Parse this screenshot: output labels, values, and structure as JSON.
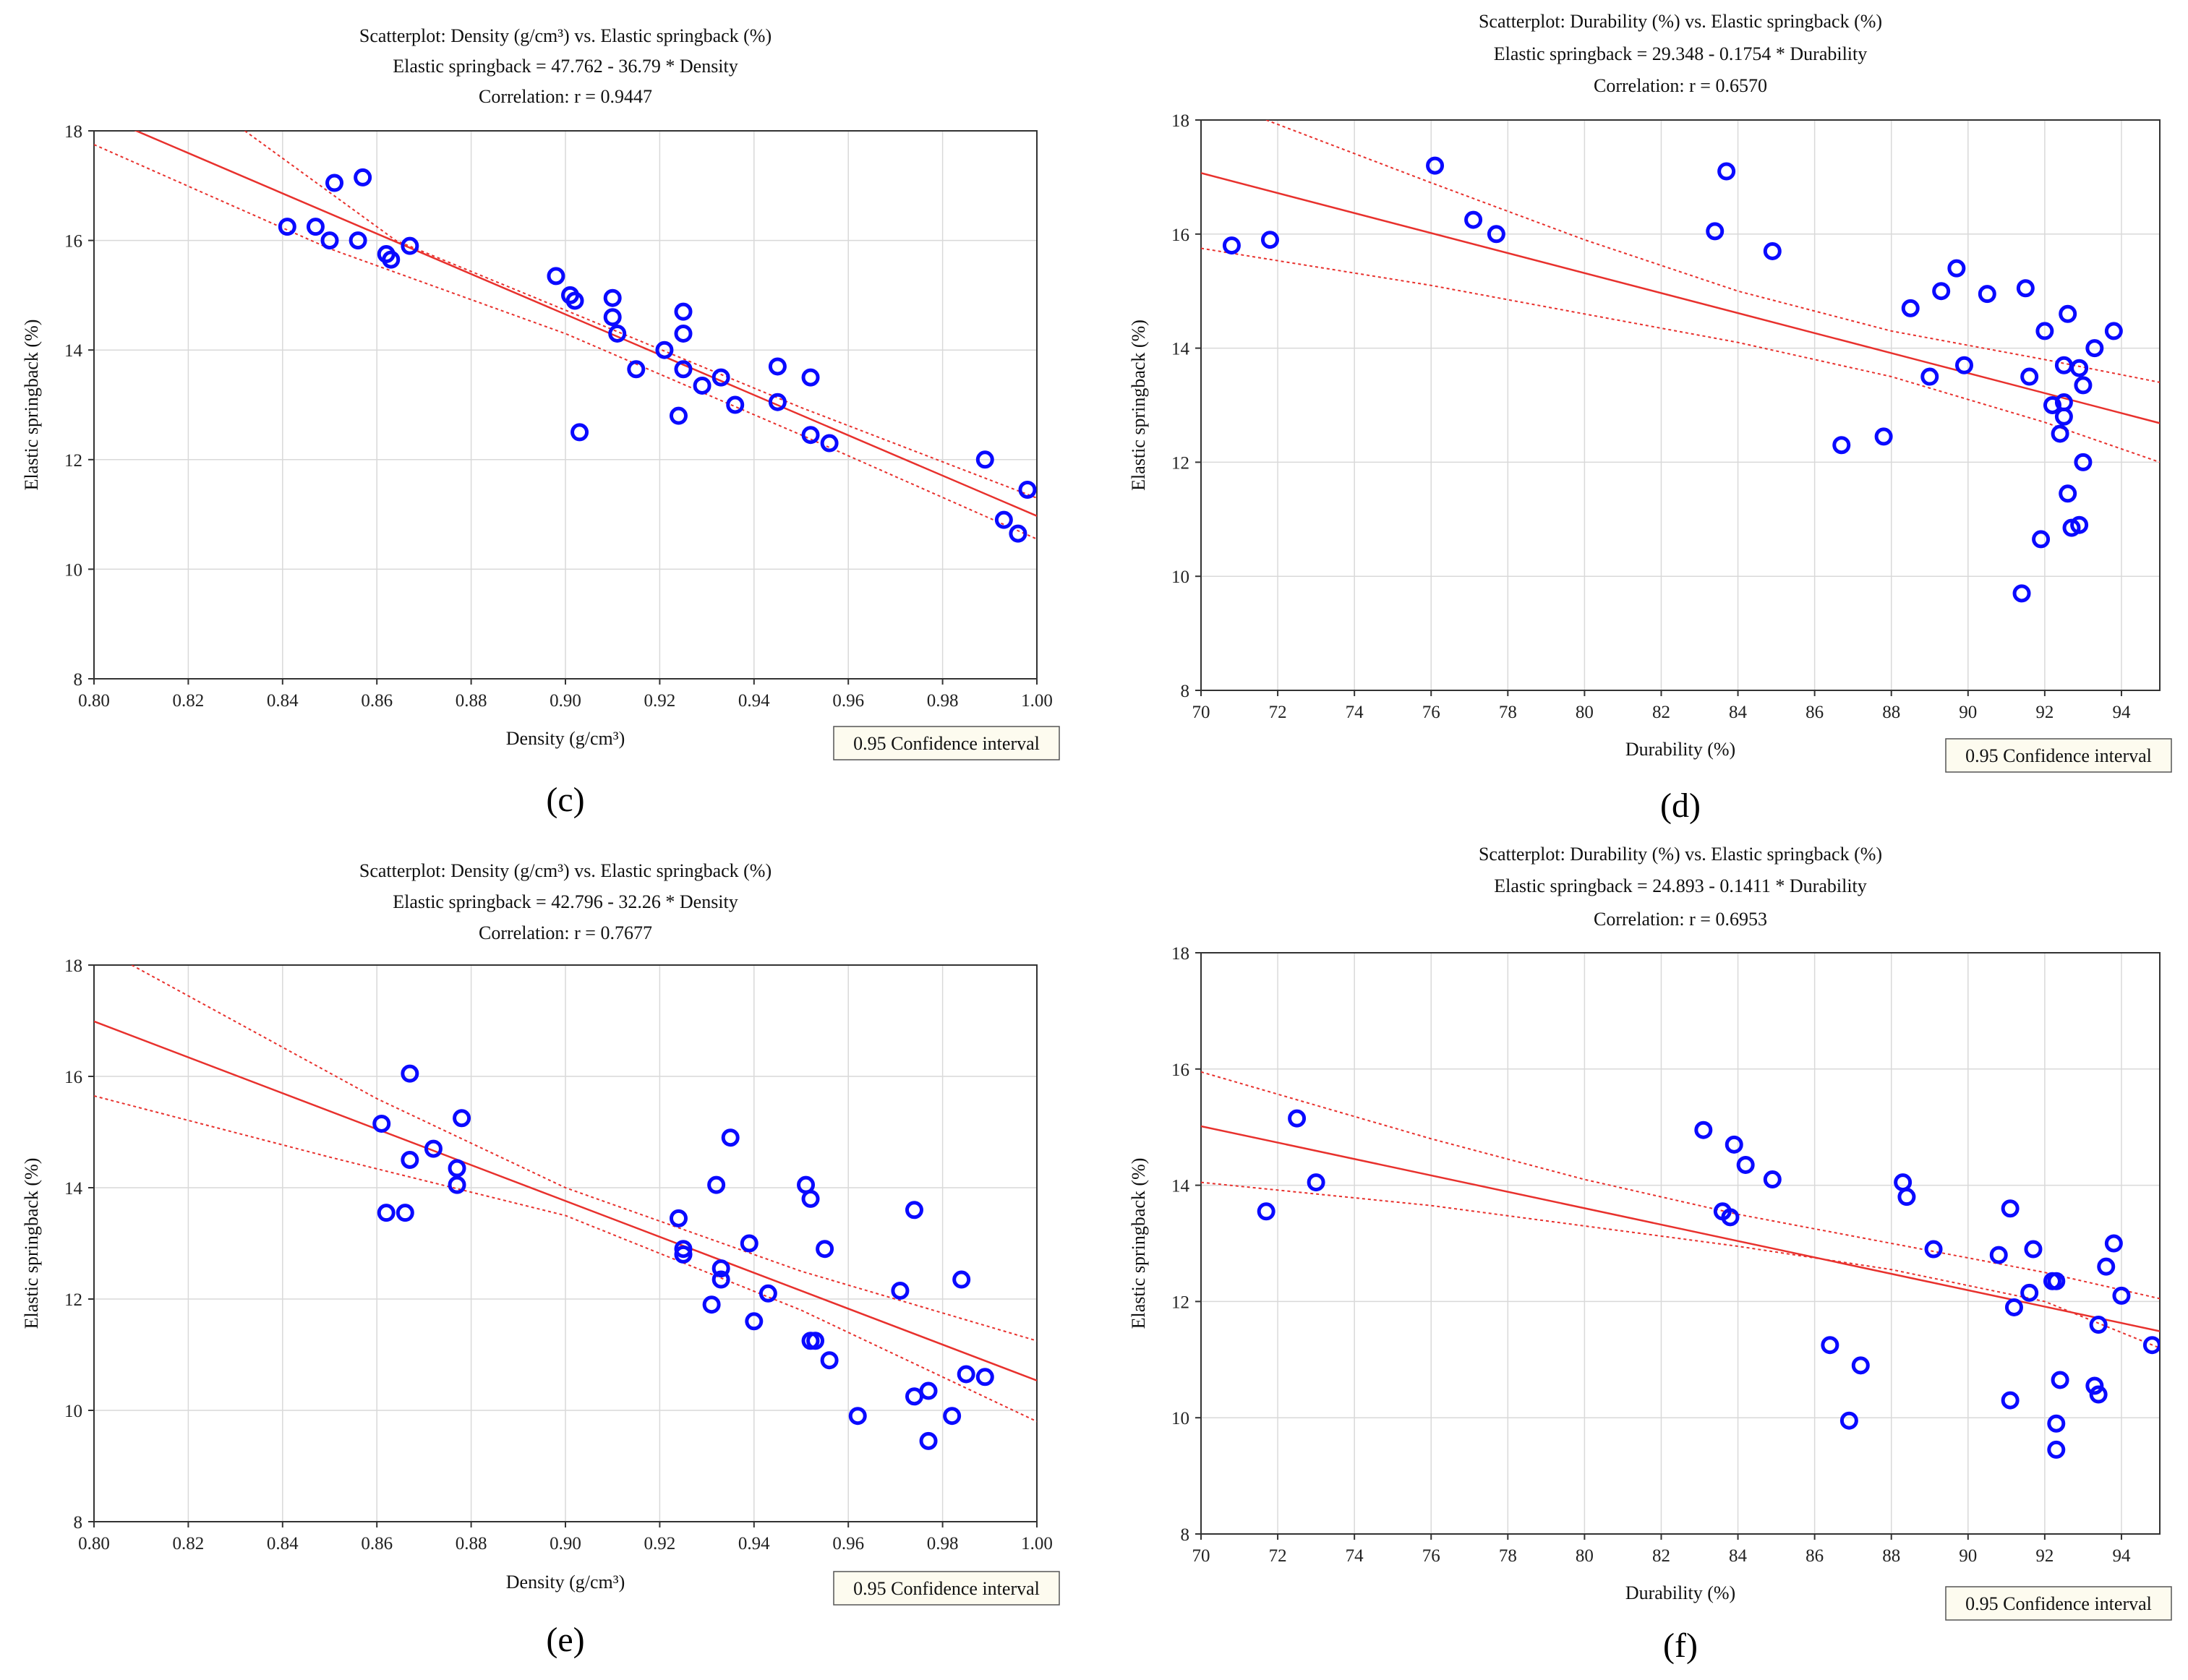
{
  "chart_data": [
    {
      "id": "c",
      "type": "scatter",
      "panel_label": "(c)",
      "title_lines": [
        "Scatterplot: Density (g/cm³)   vs. Elastic springback (%)",
        "Elastic springback  = 47.762 - 36.79  * Density",
        "Correlation: r =  0.9447"
      ],
      "xlabel": "Density (g/cm³)",
      "ylabel": "Elastic springback (%)",
      "xlim": [
        0.8,
        1.0
      ],
      "ylim": [
        8,
        18
      ],
      "xticks": [
        0.8,
        0.82,
        0.84,
        0.86,
        0.88,
        0.9,
        0.92,
        0.94,
        0.96,
        0.98,
        1.0
      ],
      "xtick_labels": [
        "0.80",
        "0.82",
        "0.84",
        "0.86",
        "0.88",
        "0.90",
        "0.92",
        "0.94",
        "0.96",
        "0.98",
        "1.00"
      ],
      "yticks": [
        8,
        10,
        12,
        14,
        16,
        18
      ],
      "ytick_labels": [
        "8",
        "10",
        "12",
        "14",
        "16",
        "18"
      ],
      "fit": {
        "intercept": 47.762,
        "slope": -36.79
      },
      "ci_upper": [
        [
          0.832,
          18
        ],
        [
          0.864,
          16.0
        ],
        [
          0.905,
          14.55
        ],
        [
          0.95,
          12.95
        ],
        [
          1.0,
          11.3
        ]
      ],
      "ci_lower": [
        [
          0.8,
          17.75
        ],
        [
          0.85,
          15.85
        ],
        [
          0.9,
          14.3
        ],
        [
          0.95,
          12.45
        ],
        [
          1.0,
          10.55
        ]
      ],
      "legend": "0.95 Confidence interval",
      "points": [
        [
          0.841,
          16.25
        ],
        [
          0.847,
          16.25
        ],
        [
          0.85,
          16.0
        ],
        [
          0.851,
          17.05
        ],
        [
          0.856,
          16.0
        ],
        [
          0.857,
          17.15
        ],
        [
          0.862,
          15.75
        ],
        [
          0.863,
          15.65
        ],
        [
          0.867,
          15.9
        ],
        [
          0.898,
          15.35
        ],
        [
          0.901,
          15.0
        ],
        [
          0.902,
          14.9
        ],
        [
          0.903,
          12.5
        ],
        [
          0.91,
          14.95
        ],
        [
          0.91,
          14.6
        ],
        [
          0.911,
          14.3
        ],
        [
          0.915,
          13.65
        ],
        [
          0.921,
          14.0
        ],
        [
          0.924,
          12.8
        ],
        [
          0.925,
          14.7
        ],
        [
          0.925,
          14.3
        ],
        [
          0.925,
          13.65
        ],
        [
          0.929,
          13.35
        ],
        [
          0.933,
          13.5
        ],
        [
          0.936,
          13.0
        ],
        [
          0.945,
          13.05
        ],
        [
          0.945,
          13.7
        ],
        [
          0.952,
          13.5
        ],
        [
          0.952,
          12.45
        ],
        [
          0.956,
          12.3
        ],
        [
          0.989,
          12.0
        ],
        [
          0.993,
          10.9
        ],
        [
          0.996,
          10.65
        ],
        [
          0.998,
          11.45
        ]
      ]
    },
    {
      "id": "d",
      "type": "scatter",
      "panel_label": "(d)",
      "title_lines": [
        "Scatterplot: Durability (%) vs. Elastic springback (%)",
        "Elastic springback  = 29.348 - 0.1754  * Durability",
        "Correlation: r =  0.6570"
      ],
      "xlabel": "Durability (%)",
      "ylabel": "Elastic springback (%)",
      "xlim": [
        70,
        95
      ],
      "ylim": [
        8,
        18
      ],
      "xticks": [
        70,
        72,
        74,
        76,
        78,
        80,
        82,
        84,
        86,
        88,
        90,
        92,
        94
      ],
      "xtick_labels": [
        "70",
        "72",
        "74",
        "76",
        "78",
        "80",
        "82",
        "84",
        "86",
        "88",
        "90",
        "92",
        "94"
      ],
      "yticks": [
        8,
        10,
        12,
        14,
        16,
        18
      ],
      "ytick_labels": [
        "8",
        "10",
        "12",
        "14",
        "16",
        "18"
      ],
      "fit": {
        "intercept": 29.348,
        "slope": -0.1754
      },
      "ci_upper": [
        [
          71.7,
          18
        ],
        [
          76,
          16.9
        ],
        [
          80,
          15.9
        ],
        [
          84,
          15.0
        ],
        [
          88,
          14.3
        ],
        [
          92,
          13.8
        ],
        [
          95,
          13.4
        ]
      ],
      "ci_lower": [
        [
          70,
          15.75
        ],
        [
          76,
          15.1
        ],
        [
          80,
          14.6
        ],
        [
          84,
          14.1
        ],
        [
          88,
          13.5
        ],
        [
          92,
          12.7
        ],
        [
          95,
          12.0
        ]
      ],
      "legend": "0.95 Confidence interval",
      "points": [
        [
          70.8,
          15.8
        ],
        [
          71.8,
          15.9
        ],
        [
          76.1,
          17.2
        ],
        [
          77.1,
          16.25
        ],
        [
          77.7,
          16.0
        ],
        [
          83.4,
          16.05
        ],
        [
          83.7,
          17.1
        ],
        [
          84.9,
          15.7
        ],
        [
          86.7,
          12.3
        ],
        [
          87.8,
          12.45
        ],
        [
          88.5,
          14.7
        ],
        [
          89.0,
          13.5
        ],
        [
          89.3,
          15.0
        ],
        [
          89.7,
          15.4
        ],
        [
          89.9,
          13.7
        ],
        [
          90.5,
          14.95
        ],
        [
          91.4,
          9.7
        ],
        [
          91.5,
          15.05
        ],
        [
          91.6,
          13.5
        ],
        [
          92.0,
          14.3
        ],
        [
          91.9,
          10.65
        ],
        [
          92.2,
          13.0
        ],
        [
          92.4,
          12.5
        ],
        [
          92.5,
          13.7
        ],
        [
          92.5,
          13.05
        ],
        [
          92.5,
          12.8
        ],
        [
          92.6,
          14.6
        ],
        [
          92.6,
          11.45
        ],
        [
          92.7,
          10.85
        ],
        [
          92.9,
          13.65
        ],
        [
          93.0,
          13.35
        ],
        [
          93.0,
          12.0
        ],
        [
          92.9,
          10.9
        ],
        [
          93.3,
          14.0
        ],
        [
          93.8,
          14.3
        ]
      ]
    },
    {
      "id": "e",
      "type": "scatter",
      "panel_label": "(e)",
      "title_lines": [
        "Scatterplot: Density (g/cm³)    vs. Elastic springback (%)",
        "Elastic springback  = 42.796 - 32.26  * Density",
        "Correlation: r =  0.7677"
      ],
      "xlabel": "Density (g/cm³)",
      "ylabel": "Elastic springback (%)",
      "xlim": [
        0.8,
        1.0
      ],
      "ylim": [
        8,
        18
      ],
      "xticks": [
        0.8,
        0.82,
        0.84,
        0.86,
        0.88,
        0.9,
        0.92,
        0.94,
        0.96,
        0.98,
        1.0
      ],
      "xtick_labels": [
        "0.80",
        "0.82",
        "0.84",
        "0.86",
        "0.88",
        "0.90",
        "0.92",
        "0.94",
        "0.96",
        "0.98",
        "1.00"
      ],
      "yticks": [
        8,
        10,
        12,
        14,
        16,
        18
      ],
      "ytick_labels": [
        "8",
        "10",
        "12",
        "14",
        "16",
        "18"
      ],
      "fit": {
        "intercept": 42.796,
        "slope": -32.26
      },
      "ci_upper": [
        [
          0.808,
          18
        ],
        [
          0.86,
          15.6
        ],
        [
          0.9,
          14.0
        ],
        [
          0.95,
          12.5
        ],
        [
          1.0,
          11.25
        ]
      ],
      "ci_lower": [
        [
          0.8,
          15.65
        ],
        [
          0.85,
          14.55
        ],
        [
          0.9,
          13.5
        ],
        [
          0.95,
          11.8
        ],
        [
          1.0,
          9.8
        ]
      ],
      "legend": "0.95 Confidence interval",
      "points": [
        [
          0.861,
          15.15
        ],
        [
          0.862,
          13.55
        ],
        [
          0.866,
          13.55
        ],
        [
          0.867,
          16.05
        ],
        [
          0.867,
          14.5
        ],
        [
          0.872,
          14.7
        ],
        [
          0.877,
          14.35
        ],
        [
          0.877,
          14.05
        ],
        [
          0.878,
          15.25
        ],
        [
          0.924,
          13.45
        ],
        [
          0.925,
          12.9
        ],
        [
          0.925,
          12.8
        ],
        [
          0.931,
          11.9
        ],
        [
          0.932,
          14.05
        ],
        [
          0.933,
          12.55
        ],
        [
          0.933,
          12.35
        ],
        [
          0.935,
          14.9
        ],
        [
          0.939,
          13.0
        ],
        [
          0.94,
          11.6
        ],
        [
          0.943,
          12.1
        ],
        [
          0.951,
          14.05
        ],
        [
          0.952,
          13.8
        ],
        [
          0.952,
          11.25
        ],
        [
          0.953,
          11.25
        ],
        [
          0.955,
          12.9
        ],
        [
          0.956,
          10.9
        ],
        [
          0.962,
          9.9
        ],
        [
          0.971,
          12.15
        ],
        [
          0.974,
          13.6
        ],
        [
          0.974,
          10.25
        ],
        [
          0.977,
          10.35
        ],
        [
          0.977,
          9.45
        ],
        [
          0.982,
          9.9
        ],
        [
          0.984,
          12.35
        ],
        [
          0.985,
          10.65
        ],
        [
          0.989,
          10.6
        ]
      ]
    },
    {
      "id": "f",
      "type": "scatter",
      "panel_label": "(f)",
      "title_lines": [
        "Scatterplot: Durability (%) vs. Elastic springback (%)",
        "Elastic springback  = 24.893 - 0.1411  * Durability",
        "Correlation: r =  0.6953"
      ],
      "xlabel": "Durability (%)",
      "ylabel": "Elastic springback (%)",
      "xlim": [
        70,
        95
      ],
      "ylim": [
        8,
        18
      ],
      "xticks": [
        70,
        72,
        74,
        76,
        78,
        80,
        82,
        84,
        86,
        88,
        90,
        92,
        94
      ],
      "xtick_labels": [
        "70",
        "72",
        "74",
        "76",
        "78",
        "80",
        "82",
        "84",
        "86",
        "88",
        "90",
        "92",
        "94"
      ],
      "yticks": [
        8,
        10,
        12,
        14,
        16,
        18
      ],
      "ytick_labels": [
        "8",
        "10",
        "12",
        "14",
        "16",
        "18"
      ],
      "fit": {
        "intercept": 24.893,
        "slope": -0.1411
      },
      "ci_upper": [
        [
          70,
          15.95
        ],
        [
          76,
          14.8
        ],
        [
          80,
          14.1
        ],
        [
          84,
          13.5
        ],
        [
          88,
          13.0
        ],
        [
          92,
          12.5
        ],
        [
          95,
          12.05
        ]
      ],
      "ci_lower": [
        [
          70,
          14.05
        ],
        [
          76,
          13.65
        ],
        [
          80,
          13.3
        ],
        [
          84,
          12.95
        ],
        [
          88,
          12.55
        ],
        [
          92,
          12.0
        ],
        [
          95,
          11.2
        ]
      ],
      "legend": "0.95 Confidence interval",
      "points": [
        [
          71.7,
          13.55
        ],
        [
          72.5,
          15.15
        ],
        [
          73.0,
          14.05
        ],
        [
          83.1,
          14.95
        ],
        [
          83.6,
          13.55
        ],
        [
          83.8,
          13.45
        ],
        [
          83.9,
          14.7
        ],
        [
          84.2,
          14.35
        ],
        [
          84.9,
          14.1
        ],
        [
          86.4,
          11.25
        ],
        [
          86.9,
          9.95
        ],
        [
          87.2,
          10.9
        ],
        [
          88.3,
          14.05
        ],
        [
          88.4,
          13.8
        ],
        [
          89.1,
          12.9
        ],
        [
          90.8,
          12.8
        ],
        [
          91.1,
          13.6
        ],
        [
          91.1,
          10.3
        ],
        [
          91.2,
          11.9
        ],
        [
          91.6,
          12.15
        ],
        [
          91.7,
          12.9
        ],
        [
          92.2,
          12.35
        ],
        [
          92.3,
          12.35
        ],
        [
          92.3,
          9.9
        ],
        [
          92.3,
          9.45
        ],
        [
          92.4,
          10.65
        ],
        [
          93.3,
          10.55
        ],
        [
          93.4,
          10.4
        ],
        [
          93.4,
          11.6
        ],
        [
          93.6,
          12.6
        ],
        [
          93.8,
          13.0
        ],
        [
          94.0,
          12.1
        ],
        [
          94.8,
          11.25
        ]
      ]
    }
  ]
}
